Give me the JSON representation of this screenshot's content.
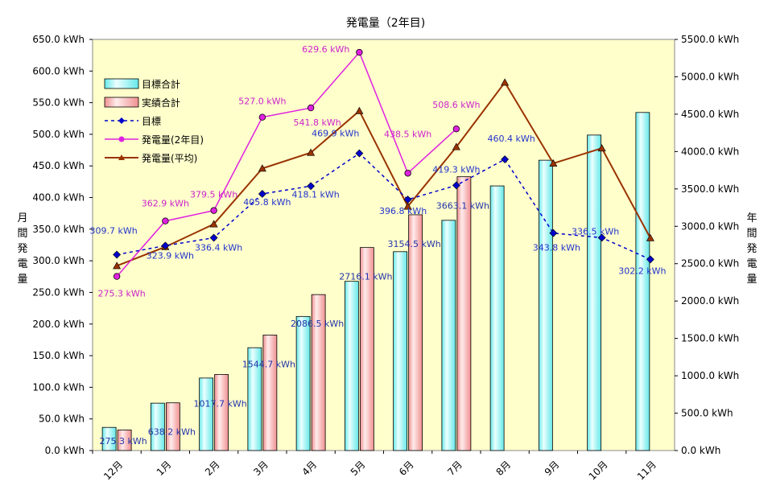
{
  "chart_data": {
    "type": "bar",
    "title": "発電量（2年目)",
    "ylabel": "月間発電量",
    "y2label": "年間発電量",
    "categories": [
      "12月",
      "1月",
      "2月",
      "3月",
      "4月",
      "5月",
      "6月",
      "7月",
      "8月",
      "9月",
      "10月",
      "11月"
    ],
    "ylim": [
      0,
      650
    ],
    "y_ticks": [
      "0.0 kWh",
      "50.0 kWh",
      "100.0 kWh",
      "150.0 kWh",
      "200.0 kWh",
      "250.0 kWh",
      "300.0 kWh",
      "350.0 kWh",
      "400.0 kWh",
      "450.0 kWh",
      "500.0 kWh",
      "550.0 kWh",
      "600.0 kWh",
      "650.0 kWh"
    ],
    "y2lim": [
      0,
      5500
    ],
    "y2_ticks": [
      "0.0 kWh",
      "500.0 kWh",
      "1000.0 kWh",
      "1500.0 kWh",
      "2000.0 kWh",
      "2500.0 kWh",
      "3000.0 kWh",
      "3500.0 kWh",
      "4000.0 kWh",
      "4500.0 kWh",
      "5000.0 kWh",
      "5500.0 kWh"
    ],
    "grid": false,
    "legend_position": "top-left",
    "plot_background": "#ffffcc",
    "series": [
      {
        "name": "目標合計",
        "kind": "bar",
        "axis": "right",
        "color": "#66e8e8",
        "values": [
          309.7,
          633.6,
          970.0,
          1375.8,
          1793.9,
          2263.8,
          2660.6,
          3079.9,
          3540.3,
          3884.1,
          4220.6,
          4522.8
        ]
      },
      {
        "name": "実績合計",
        "kind": "bar",
        "axis": "right",
        "color": "#f09090",
        "values": [
          275.3,
          638.2,
          1017.7,
          1544.7,
          2086.5,
          2716.1,
          3154.5,
          3663.1,
          null,
          null,
          null,
          null
        ]
      },
      {
        "name": "目標",
        "kind": "line",
        "axis": "left",
        "color": "#0000cc",
        "values": [
          309.7,
          323.9,
          336.4,
          405.8,
          418.1,
          469.9,
          396.8,
          419.3,
          460.4,
          343.8,
          336.5,
          302.2
        ]
      },
      {
        "name": "発電量(2年目)",
        "kind": "line",
        "axis": "left",
        "color": "#e020e0",
        "values": [
          275.3,
          362.9,
          379.5,
          527.0,
          541.8,
          629.6,
          438.5,
          508.6,
          null,
          null,
          null,
          null
        ]
      },
      {
        "name": "発電量(平均)",
        "kind": "line",
        "axis": "left",
        "color": "#993300",
        "values": [
          292,
          322,
          358,
          446,
          471,
          537,
          386,
          480,
          582,
          454,
          478,
          336
        ]
      }
    ],
    "labels": {
      "bar_actual": [
        "275.3 kWh",
        "638.2 kWh",
        "1017.7 kWh",
        "1544.7 kWh",
        "2086.5 kWh",
        "2716.1 kWh",
        "3154.5 kWh",
        "3663.1 kWh",
        "",
        "",
        "",
        ""
      ],
      "target": [
        "309.7 kWh",
        "323.9 kWh",
        "336.4 kWh",
        "405.8 kWh",
        "418.1 kWh",
        "469.9 kWh",
        "396.8 kWh",
        "419.3 kWh",
        "460.4 kWh",
        "343.8 kWh",
        "336.5 kWh",
        "302.2 kWh"
      ],
      "gen2": [
        "275.3 kWh",
        "362.9 kWh",
        "379.5 kWh",
        "527.0 kWh",
        "541.8 kWh",
        "629.6 kWh",
        "438.5 kWh",
        "508.6 kWh",
        "",
        "",
        "",
        ""
      ]
    }
  }
}
